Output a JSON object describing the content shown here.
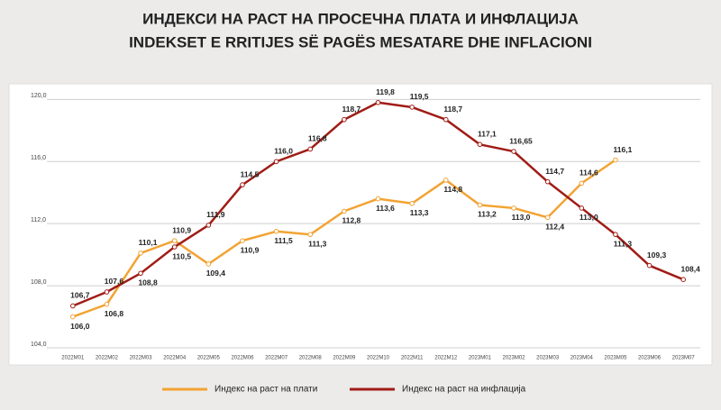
{
  "chart_data": {
    "type": "line",
    "title": "ИНДЕКСИ НА РАСТ НА ПРОСЕЧНА ПЛАТА И ИНФЛАЦИЈА",
    "subtitle": "INDEKSET E RRITIJES SË PAGËS MESATARE DHE INFLACIONI",
    "categories": [
      "2022M01",
      "2022M02",
      "2022M03",
      "2022M04",
      "2022M05",
      "2022M06",
      "2022M07",
      "2022M08",
      "2022M09",
      "2022M10",
      "2022M11",
      "2022M12",
      "2023M01",
      "2023M02",
      "2023M03",
      "2023M04",
      "2023M05",
      "2023M06",
      "2023M07"
    ],
    "series": [
      {
        "name": "Индекс на раст на плати",
        "color": "#f2a333",
        "values": [
          106.0,
          106.8,
          110.1,
          110.9,
          109.4,
          110.9,
          111.5,
          111.3,
          112.8,
          113.6,
          113.3,
          114.8,
          113.2,
          113.0,
          112.4,
          114.6,
          116.1,
          null,
          null
        ],
        "value_labels": [
          "106,0",
          "106,8",
          "110,1",
          "110,9",
          "109,4",
          "110,9",
          "111,5",
          "111,3",
          "112,8",
          "113,6",
          "113,3",
          "114,8",
          "113,2",
          "113,0",
          "112,4",
          "114,6",
          "116,1",
          null,
          null
        ]
      },
      {
        "name": "Индекс на раст на инфлација",
        "color": "#a01c16",
        "values": [
          106.7,
          107.6,
          108.8,
          110.5,
          111.9,
          114.5,
          116.0,
          116.8,
          118.7,
          119.8,
          119.5,
          118.7,
          117.1,
          116.65,
          114.7,
          113.0,
          111.3,
          109.3,
          108.4
        ],
        "value_labels": [
          "106,7",
          "107,6",
          "108,8",
          "110,5",
          "111,9",
          "114,5",
          "116,0",
          "116,8",
          "118,7",
          "119,8",
          "119,5",
          "118,7",
          "117,1",
          "116,65",
          "114,7",
          "113,0",
          "111,3",
          "109,3",
          "108,4"
        ]
      }
    ],
    "ylim": [
      104,
      120.6
    ],
    "yticks": [
      {
        "value": 104,
        "label": "104,0"
      },
      {
        "value": 108,
        "label": "108,0"
      },
      {
        "value": 112,
        "label": "112,0"
      },
      {
        "value": 116,
        "label": "116,0"
      },
      {
        "value": 120,
        "label": "120,0"
      }
    ],
    "grid": true,
    "legend": "bottom"
  }
}
